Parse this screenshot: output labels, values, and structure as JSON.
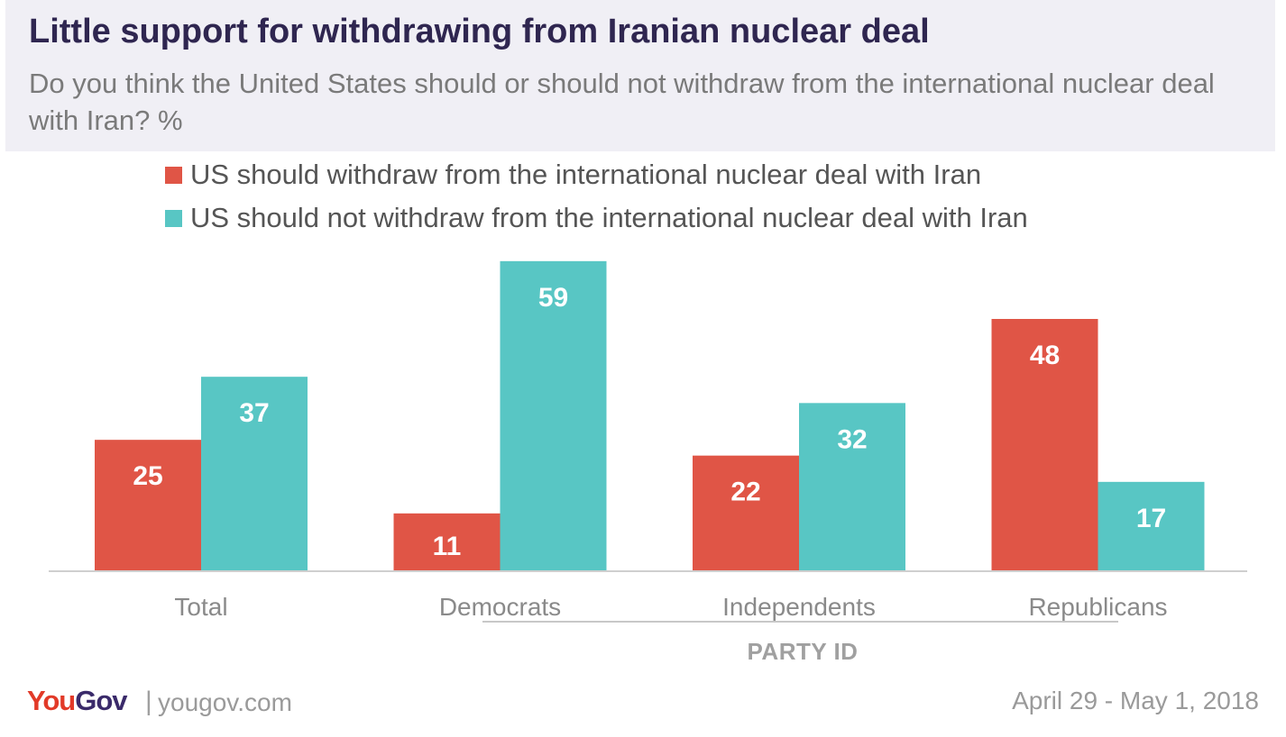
{
  "title": "Little support for withdrawing from Iranian nuclear deal",
  "subtitle": "Do you think the United States should or should not withdraw from the international nuclear deal with Iran? %",
  "chart_data": {
    "type": "bar",
    "categories": [
      "Total",
      "Democrats",
      "Independents",
      "Republicans"
    ],
    "series": [
      {
        "name": "US should withdraw from the international nuclear deal with Iran",
        "color": "#e05546",
        "values": [
          25,
          11,
          22,
          48
        ]
      },
      {
        "name": "US should not withdraw from the international nuclear deal with Iran",
        "color": "#58c6c4",
        "values": [
          37,
          59,
          32,
          17
        ]
      }
    ],
    "xlabel": "PARTY ID",
    "ylim": [
      0,
      60
    ],
    "grid": false,
    "legend_position": "top-left"
  },
  "footer": {
    "brand": "YouGov",
    "separator": "|",
    "url": "yougov.com",
    "date": "April 29 - May 1, 2018"
  },
  "colors": {
    "title": "#2f2650",
    "brand_red": "#e23a28",
    "brand_purple": "#3a2a6a"
  }
}
